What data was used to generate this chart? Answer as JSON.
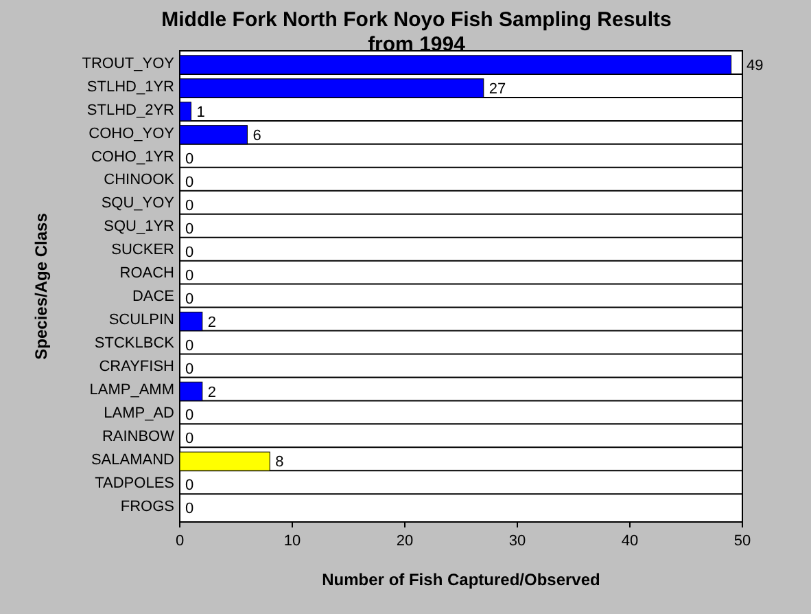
{
  "chart_data": {
    "type": "bar",
    "orientation": "horizontal",
    "title": "Middle Fork North Fork Noyo Fish Sampling Results from 1994",
    "xlabel": "Number of Fish Captured/Observed",
    "ylabel": "Species/Age Class",
    "categories": [
      "TROUT_YOY",
      "STLHD_1YR",
      "STLHD_2YR",
      "COHO_YOY",
      "COHO_1YR",
      "CHINOOK",
      "SQU_YOY",
      "SQU_1YR",
      "SUCKER",
      "ROACH",
      "DACE",
      "SCULPIN",
      "STCKLBCK",
      "CRAYFISH",
      "LAMP_AMM",
      "LAMP_AD",
      "RAINBOW",
      "SALAMAND",
      "TADPOLES",
      "FROGS"
    ],
    "values": [
      49,
      27,
      1,
      6,
      0,
      0,
      0,
      0,
      0,
      0,
      0,
      2,
      0,
      0,
      2,
      0,
      0,
      8,
      0,
      0
    ],
    "colors": [
      "#0000ff",
      "#0000ff",
      "#0000ff",
      "#0000ff",
      null,
      null,
      null,
      null,
      null,
      null,
      null,
      "#0000ff",
      null,
      null,
      "#0000ff",
      null,
      null,
      "#ffff00",
      null,
      null
    ],
    "xlim": [
      0,
      50
    ],
    "xticks": [
      0,
      10,
      20,
      30,
      40,
      50
    ],
    "grid": "y",
    "data_labels": true
  }
}
